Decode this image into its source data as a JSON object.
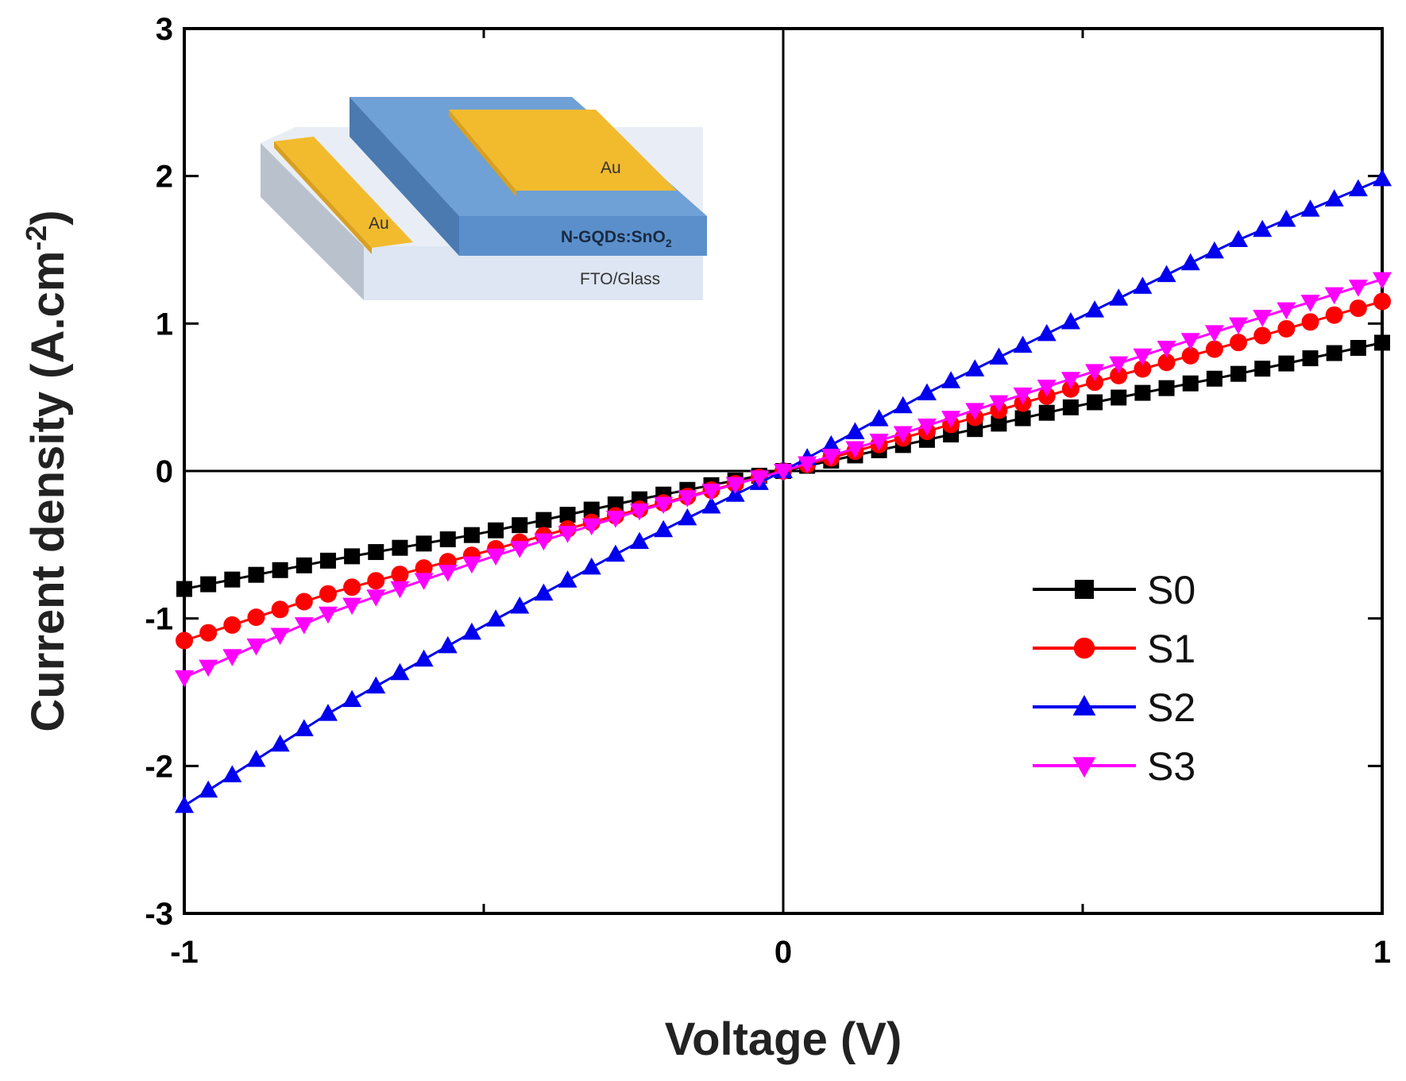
{
  "chart_data": {
    "type": "line",
    "title": "",
    "xlabel": "Voltage (V)",
    "ylabel_main": "Current density (A.cm",
    "ylabel_exp": "-2",
    "ylabel_close": ")",
    "xlim": [
      -1,
      1
    ],
    "ylim": [
      -3,
      3
    ],
    "x_ticks_major": [
      -1,
      0,
      1
    ],
    "x_ticks_minor": [
      -0.5,
      0.5
    ],
    "y_ticks": [
      -3,
      -2,
      -1,
      0,
      1,
      2,
      3
    ],
    "x_tick_labels": [
      "-1",
      "0",
      "1"
    ],
    "y_tick_labels": [
      "-3",
      "-2",
      "-1",
      "0",
      "1",
      "2",
      "3"
    ],
    "x_points": 51,
    "legend_position": "lower-right",
    "series": [
      {
        "name": "S0",
        "color": "#000000",
        "marker": "square",
        "points": [
          [
            -1,
            -0.8
          ],
          [
            -0.75,
            -0.6
          ],
          [
            -0.5,
            -0.42
          ],
          [
            -0.25,
            -0.2
          ],
          [
            0,
            0.0
          ],
          [
            0.25,
            0.22
          ],
          [
            0.5,
            0.45
          ],
          [
            0.75,
            0.65
          ],
          [
            1,
            0.87
          ]
        ]
      },
      {
        "name": "S1",
        "color": "#ff0000",
        "marker": "circle",
        "points": [
          [
            -1,
            -1.15
          ],
          [
            -0.75,
            -0.82
          ],
          [
            -0.5,
            -0.55
          ],
          [
            -0.25,
            -0.27
          ],
          [
            0,
            0.0
          ],
          [
            0.25,
            0.28
          ],
          [
            0.5,
            0.58
          ],
          [
            0.75,
            0.86
          ],
          [
            1,
            1.15
          ]
        ]
      },
      {
        "name": "S2",
        "color": "#0000ee",
        "marker": "triangle-up",
        "points": [
          [
            -1,
            -2.27
          ],
          [
            -0.75,
            -1.62
          ],
          [
            -0.5,
            -1.05
          ],
          [
            -0.25,
            -0.5
          ],
          [
            0,
            0.0
          ],
          [
            0.25,
            0.55
          ],
          [
            0.5,
            1.05
          ],
          [
            0.75,
            1.55
          ],
          [
            1,
            1.98
          ]
        ]
      },
      {
        "name": "S3",
        "color": "#ff00ff",
        "marker": "triangle-down",
        "points": [
          [
            -1,
            -1.4
          ],
          [
            -0.75,
            -0.95
          ],
          [
            -0.5,
            -0.6
          ],
          [
            -0.25,
            -0.28
          ],
          [
            0,
            0.0
          ],
          [
            0.25,
            0.32
          ],
          [
            0.5,
            0.65
          ],
          [
            0.75,
            0.98
          ],
          [
            1,
            1.3
          ]
        ]
      }
    ]
  },
  "inset": {
    "electrode_left_label": "Au",
    "electrode_right_label": "Au",
    "layer_label_main": "N-GQDs:SnO",
    "layer_label_sub": "2",
    "substrate_label": "FTO/Glass",
    "colors": {
      "gold": "#f2bb2e",
      "gold_dark": "#d9a020",
      "blue_top": "#6fa0d6",
      "blue_front": "#5b8fcb",
      "blue_side": "#4a7ab0",
      "glass_top": "#e6ecf4",
      "glass_front": "#dde6f2",
      "glass_side": "#b9c2cc"
    }
  }
}
